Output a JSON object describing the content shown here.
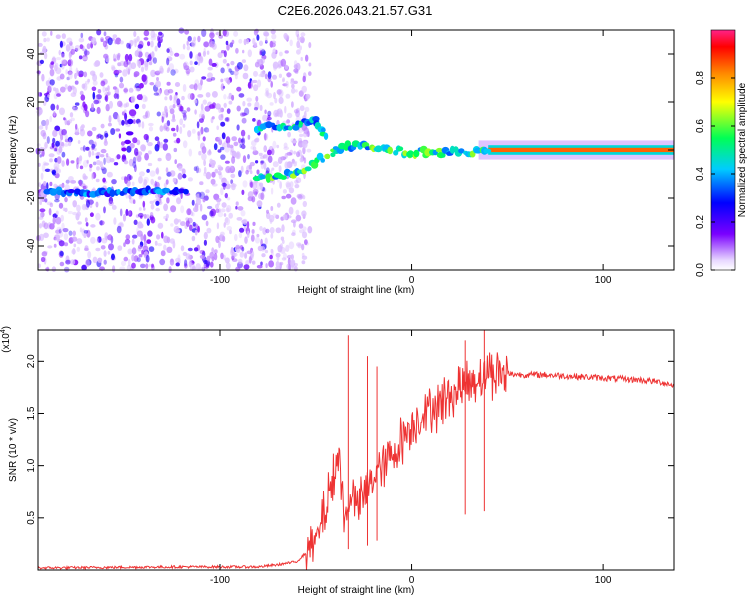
{
  "chart_data": [
    {
      "type": "heatmap",
      "title": "C2E6.2026.043.21.57.G31",
      "xlabel": "Height of straight line (km)",
      "ylabel": "Frequency (Hz)",
      "xlim": [
        -195,
        137
      ],
      "ylim": [
        -50,
        50
      ],
      "x_ticks": [
        -100,
        0,
        100
      ],
      "y_ticks": [
        -40,
        -20,
        0,
        20,
        40
      ],
      "colorbar": {
        "label": "Normalized spectral amplitude",
        "range": [
          0.0,
          1.0
        ],
        "ticks": [
          "0.0",
          "0.2",
          "0.4",
          "0.6",
          "0.8"
        ],
        "tick_values": [
          0.0,
          0.2,
          0.4,
          0.6,
          0.8
        ]
      },
      "features": [
        {
          "name": "noise-region",
          "x_range": [
            -195,
            -65
          ],
          "note": "sparse low-amplitude purple speckle across all frequencies"
        },
        {
          "name": "weak-lower-trace",
          "points": [
            [
              -190,
              -17
            ],
            [
              -170,
              -18
            ],
            [
              -140,
              -17
            ],
            [
              -118,
              -17
            ]
          ],
          "amplitude": 0.35
        },
        {
          "name": "diagonal-streak",
          "points": [
            [
              -150,
              0
            ],
            [
              -140,
              30
            ]
          ],
          "amplitude": 0.2
        },
        {
          "name": "main-trace-lower",
          "points": [
            [
              -80,
              -12
            ],
            [
              -60,
              -10
            ],
            [
              -40,
              0
            ],
            [
              -30,
              2
            ],
            [
              -15,
              0
            ],
            [
              0,
              -1
            ],
            [
              20,
              -1
            ],
            [
              40,
              -1
            ]
          ],
          "amplitude": 0.55
        },
        {
          "name": "main-trace-upper",
          "points": [
            [
              -80,
              9
            ],
            [
              -60,
              10
            ],
            [
              -50,
              13
            ],
            [
              -45,
              6
            ]
          ],
          "amplitude": 0.5
        },
        {
          "name": "steady-band",
          "points": [
            [
              40,
              0
            ],
            [
              137,
              0
            ]
          ],
          "amplitude": 0.85
        }
      ]
    },
    {
      "type": "line",
      "xlabel": "Height of straight line (km)",
      "ylabel": "SNR (10 * v/v)",
      "y_scale_label": "(x10",
      "y_scale_exp": "4",
      "xlim": [
        -195,
        137
      ],
      "ylim": [
        0.0,
        2.3
      ],
      "x_ticks": [
        -100,
        0,
        100
      ],
      "y_ticks": [
        0.5,
        1.0,
        1.5,
        2.0
      ],
      "y_tick_labels": [
        "0.5",
        "1.0",
        "1.5",
        "2.0"
      ],
      "series": [
        {
          "name": "SNR",
          "color": "#ee3333",
          "x": [
            -195,
            -120,
            -80,
            -70,
            -60,
            -50,
            -45,
            -40,
            -38,
            -35,
            -32,
            -30,
            -25,
            -20,
            -15,
            -10,
            -5,
            0,
            10,
            20,
            30,
            40,
            50,
            60,
            70,
            80,
            90,
            100,
            110,
            120,
            130,
            137
          ],
          "y": [
            0.02,
            0.03,
            0.03,
            0.05,
            0.08,
            0.25,
            0.6,
            0.9,
            1.2,
            0.4,
            0.8,
            0.6,
            0.7,
            0.9,
            1.0,
            1.1,
            1.25,
            1.4,
            1.55,
            1.68,
            1.8,
            1.9,
            1.88,
            1.87,
            1.87,
            1.86,
            1.85,
            1.84,
            1.83,
            1.82,
            1.8,
            1.77
          ]
        }
      ],
      "spikes": [
        {
          "x": -33,
          "y": 2.25
        },
        {
          "x": -23,
          "y": 2.05
        },
        {
          "x": -18,
          "y": 1.95
        },
        {
          "x": 28,
          "y": 2.2
        },
        {
          "x": 38,
          "y": 2.3
        }
      ]
    }
  ]
}
